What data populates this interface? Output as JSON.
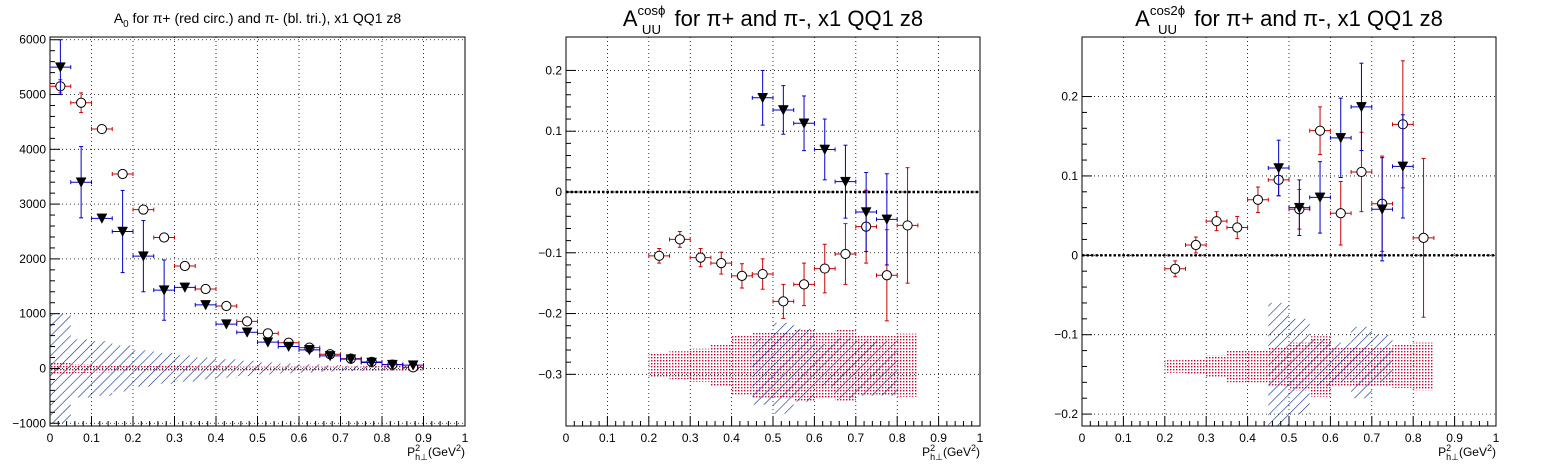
{
  "chart_data": [
    {
      "type": "scatter",
      "title": "A_0 for π+ (red circ.) and π- (bl. tri.), x1 QQ1 z8",
      "title_parts": {
        "pre": "A",
        "sub": "0",
        "post": " for π+ (red circ.) and π- (bl. tri.), x1 QQ1 z8"
      },
      "xlabel": "P²_h⊥(GeV²)",
      "xlim": [
        0,
        1
      ],
      "ylim": [
        -1050,
        6050
      ],
      "x_ticks": [
        0,
        0.1,
        0.2,
        0.3,
        0.4,
        0.5,
        0.6,
        0.7,
        0.8,
        0.9,
        1
      ],
      "x_tick_labels": [
        "0",
        "0.1",
        "0.2",
        "0.3",
        "0.4",
        "0.5",
        "0.6",
        "0.7",
        "0.8",
        "0.9",
        "1"
      ],
      "y_ticks": [
        -1000,
        0,
        1000,
        2000,
        3000,
        4000,
        5000,
        6000
      ],
      "y_tick_labels": [
        "−1000",
        "0",
        "1000",
        "2000",
        "3000",
        "4000",
        "5000",
        "6000"
      ],
      "grid": true,
      "zero_line": false,
      "series": [
        {
          "marker": "open-circle",
          "err_color": "#cc0000",
          "x": [
            0.025,
            0.075,
            0.125,
            0.175,
            0.225,
            0.275,
            0.325,
            0.375,
            0.425,
            0.475,
            0.525,
            0.575,
            0.625,
            0.675,
            0.725,
            0.775,
            0.825,
            0.875
          ],
          "y": [
            5150,
            4850,
            4370,
            3550,
            2900,
            2390,
            1870,
            1450,
            1140,
            860,
            640,
            470,
            380,
            260,
            180,
            120,
            70,
            20
          ],
          "err": [
            120,
            180,
            60,
            50,
            50,
            40,
            30,
            30,
            30,
            30,
            25,
            20,
            20,
            20,
            20,
            15,
            15,
            15
          ]
        },
        {
          "marker": "filled-triangle-down",
          "err_color": "#0000cc",
          "x": [
            0.025,
            0.075,
            0.125,
            0.175,
            0.225,
            0.275,
            0.325,
            0.375,
            0.425,
            0.475,
            0.525,
            0.575,
            0.625,
            0.675,
            0.725,
            0.775,
            0.825,
            0.875
          ],
          "y": [
            5500,
            3400,
            2740,
            2500,
            2050,
            1430,
            1480,
            1160,
            810,
            660,
            480,
            400,
            340,
            230,
            170,
            110,
            70,
            60
          ],
          "err": [
            500,
            650,
            0,
            750,
            650,
            550,
            0,
            0,
            0,
            0,
            0,
            0,
            0,
            0,
            0,
            0,
            0,
            0
          ]
        }
      ],
      "systematic_bands": [
        {
          "color": "#0b2a8a",
          "pattern": "hatch",
          "x": [
            0.025,
            0.075,
            0.125,
            0.175,
            0.225,
            0.275,
            0.325,
            0.375,
            0.425,
            0.475,
            0.525,
            0.575,
            0.625,
            0.675,
            0.725,
            0.775,
            0.825,
            0.875
          ],
          "half": [
            1000,
            530,
            500,
            420,
            330,
            280,
            240,
            200,
            170,
            140,
            110,
            90,
            75,
            60,
            50,
            45,
            40,
            35
          ]
        },
        {
          "color": "#cc0033",
          "pattern": "dots",
          "x": [
            0.025,
            0.075,
            0.125,
            0.175,
            0.225,
            0.275,
            0.325,
            0.375,
            0.425,
            0.475,
            0.525,
            0.575,
            0.625,
            0.675,
            0.725,
            0.775,
            0.825,
            0.875
          ],
          "half": [
            100,
            80,
            70,
            60,
            55,
            50,
            45,
            40,
            40,
            35,
            35,
            35,
            35,
            35,
            35,
            40,
            45,
            50
          ]
        }
      ]
    },
    {
      "type": "scatter",
      "title": "A_UU^cosϕ for π+ and π-, x1 QQ1 z8",
      "title_parts": {
        "pre": "A",
        "sub": "UU",
        "sup": "cosϕ",
        "post": " for π+ and π-, x1 QQ1 z8"
      },
      "xlabel": "P²_h⊥(GeV²)",
      "xlim": [
        0,
        1
      ],
      "ylim": [
        -0.385,
        0.255
      ],
      "x_ticks": [
        0,
        0.1,
        0.2,
        0.3,
        0.4,
        0.5,
        0.6,
        0.7,
        0.8,
        0.9,
        1
      ],
      "x_tick_labels": [
        "0",
        "0.1",
        "0.2",
        "0.3",
        "0.4",
        "0.5",
        "0.6",
        "0.7",
        "0.8",
        "0.9",
        "1"
      ],
      "y_ticks": [
        -0.3,
        -0.2,
        -0.1,
        0,
        0.1,
        0.2
      ],
      "y_tick_labels": [
        "−0.3",
        "−0.2",
        "−0.1",
        "0",
        "0.1",
        "0.2"
      ],
      "grid": true,
      "zero_line": true,
      "series": [
        {
          "marker": "open-circle",
          "err_color": "#cc0000",
          "x": [
            0.225,
            0.275,
            0.325,
            0.375,
            0.425,
            0.475,
            0.525,
            0.575,
            0.625,
            0.675,
            0.725,
            0.775,
            0.825
          ],
          "y": [
            -0.105,
            -0.078,
            -0.108,
            -0.117,
            -0.138,
            -0.135,
            -0.18,
            -0.152,
            -0.126,
            -0.102,
            -0.057,
            -0.137,
            -0.055
          ],
          "err": [
            0.012,
            0.013,
            0.015,
            0.018,
            0.02,
            0.025,
            0.028,
            0.035,
            0.04,
            0.05,
            0.06,
            0.075,
            0.095
          ]
        },
        {
          "marker": "filled-triangle-down",
          "err_color": "#0000cc",
          "x": [
            0.475,
            0.525,
            0.575,
            0.625,
            0.675,
            0.725,
            0.775
          ],
          "y": [
            0.155,
            0.135,
            0.113,
            0.07,
            0.017,
            -0.033,
            -0.045
          ],
          "err": [
            0.045,
            0.04,
            0.045,
            0.05,
            0.06,
            0.065,
            0.075
          ]
        }
      ],
      "systematic_bands": [
        {
          "color": "#cc0033",
          "pattern": "dots",
          "x": [
            0.225,
            0.275,
            0.325,
            0.375,
            0.425,
            0.475,
            0.525,
            0.575,
            0.625,
            0.675,
            0.725,
            0.775,
            0.825
          ],
          "center": [
            -0.285,
            -0.285,
            -0.285,
            -0.285,
            -0.285,
            -0.285,
            -0.285,
            -0.285,
            -0.285,
            -0.285,
            -0.285,
            -0.285,
            -0.285
          ],
          "half": [
            0.02,
            0.023,
            0.027,
            0.035,
            0.048,
            0.055,
            0.053,
            0.06,
            0.055,
            0.06,
            0.05,
            0.05,
            0.052
          ]
        },
        {
          "color": "#0b2a8a",
          "pattern": "hatch",
          "x": [
            0.475,
            0.525,
            0.575,
            0.625,
            0.675,
            0.725,
            0.775
          ],
          "center": [
            -0.295,
            -0.29,
            -0.285,
            -0.285,
            -0.29,
            -0.29,
            -0.29
          ],
          "half": [
            0.055,
            0.075,
            0.06,
            0.035,
            0.05,
            0.045,
            0.045
          ]
        }
      ]
    },
    {
      "type": "scatter",
      "title": "A_UU^cos2ϕ for π+ and π-, x1 QQ1 z8",
      "title_parts": {
        "pre": "A",
        "sub": "UU",
        "sup": "cos2ϕ",
        "post": " for π+ and π-, x1 QQ1 z8"
      },
      "xlabel": "P²_h⊥(GeV²)",
      "xlim": [
        0,
        1
      ],
      "ylim": [
        -0.215,
        0.275
      ],
      "x_ticks": [
        0,
        0.1,
        0.2,
        0.3,
        0.4,
        0.5,
        0.6,
        0.7,
        0.8,
        0.9,
        1
      ],
      "x_tick_labels": [
        "0",
        "0.1",
        "0.2",
        "0.3",
        "0.4",
        "0.5",
        "0.6",
        "0.7",
        "0.8",
        "0.9",
        "1"
      ],
      "y_ticks": [
        -0.2,
        -0.1,
        0,
        0.1,
        0.2
      ],
      "y_tick_labels": [
        "−0.2",
        "−0.1",
        "0",
        "0.1",
        "0.2"
      ],
      "grid": true,
      "zero_line": true,
      "series": [
        {
          "marker": "open-circle",
          "err_color": "#cc0000",
          "x": [
            0.225,
            0.275,
            0.325,
            0.375,
            0.425,
            0.475,
            0.525,
            0.575,
            0.625,
            0.675,
            0.725,
            0.775,
            0.825
          ],
          "y": [
            -0.017,
            0.013,
            0.043,
            0.035,
            0.07,
            0.095,
            0.058,
            0.157,
            0.053,
            0.105,
            0.065,
            0.165,
            0.022
          ],
          "err": [
            0.01,
            0.01,
            0.012,
            0.014,
            0.016,
            0.02,
            0.025,
            0.03,
            0.04,
            0.05,
            0.06,
            0.08,
            0.1
          ]
        },
        {
          "marker": "filled-triangle-down",
          "err_color": "#0000cc",
          "x": [
            0.475,
            0.525,
            0.575,
            0.625,
            0.675,
            0.725,
            0.775
          ],
          "y": [
            0.11,
            0.06,
            0.073,
            0.148,
            0.187,
            0.058,
            0.112
          ],
          "err": [
            0.035,
            0.035,
            0.045,
            0.05,
            0.055,
            0.065,
            0.065
          ]
        }
      ],
      "systematic_bands": [
        {
          "color": "#cc0033",
          "pattern": "dots",
          "x": [
            0.225,
            0.275,
            0.325,
            0.375,
            0.425,
            0.475,
            0.525,
            0.575,
            0.625,
            0.675,
            0.725,
            0.775,
            0.825
          ],
          "center": [
            -0.14,
            -0.14,
            -0.14,
            -0.14,
            -0.14,
            -0.14,
            -0.14,
            -0.14,
            -0.14,
            -0.14,
            -0.14,
            -0.14,
            -0.14
          ],
          "half": [
            0.008,
            0.01,
            0.014,
            0.02,
            0.02,
            0.025,
            0.03,
            0.038,
            0.025,
            0.025,
            0.025,
            0.027,
            0.03
          ]
        },
        {
          "color": "#0b2a8a",
          "pattern": "hatch",
          "x": [
            0.475,
            0.525,
            0.575,
            0.625,
            0.675,
            0.725
          ],
          "center": [
            -0.14,
            -0.14,
            -0.135,
            -0.135,
            -0.135,
            -0.13
          ],
          "half": [
            0.08,
            0.06,
            0.03,
            0.025,
            0.045,
            0.03
          ]
        }
      ]
    }
  ]
}
